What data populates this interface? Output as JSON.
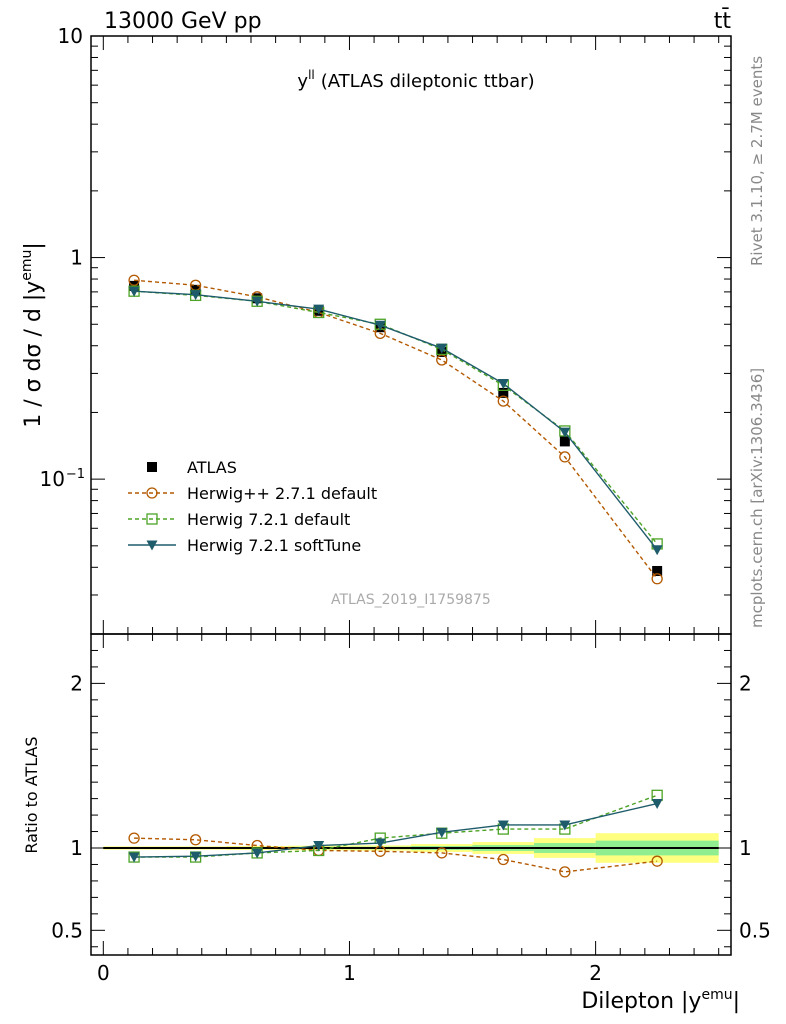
{
  "header": {
    "energy_label": "13000 GeV pp",
    "process_label": "tt̄",
    "side_label_top": "Rivet 3.1.10, ≥ 2.7M events",
    "side_label_bottom": "mcplots.cern.ch [arXiv:1306.3436]",
    "watermark": "ATLAS_2019_I1759875"
  },
  "colors": {
    "atlas": "#000000",
    "herwigpp": "#b35900",
    "herwig721": "#4ca326",
    "softtune": "#1f5c6b",
    "band_inner": "#90ee90",
    "band_outer": "#ffff80"
  },
  "chart_data": [
    {
      "type": "scatter",
      "title": "y^ll (ATLAS dileptonic ttbar)",
      "title_main": "y",
      "title_sup": "ll",
      "title_rest": "(ATLAS dileptonic ttbar)",
      "ylabel": "1 / σ  dσ / d |y^emu|",
      "ylabel_main": "1 / σ  dσ / d |y",
      "ylabel_sup": "emu",
      "ylabel_end": "|",
      "yscale": "log",
      "ylim": [
        0.02,
        10
      ],
      "xlim": [
        -0.05,
        2.55
      ],
      "y_ticks": [
        {
          "value": 10,
          "label": "10"
        },
        {
          "value": 1,
          "label": "1"
        },
        {
          "value": 0.1,
          "label": "10",
          "sup": "−1"
        }
      ],
      "x": [
        0.125,
        0.375,
        0.625,
        0.875,
        1.125,
        1.375,
        1.625,
        1.875,
        2.25
      ],
      "series": [
        {
          "name": "ATLAS",
          "marker": "filled-square",
          "line": "none",
          "values": [
            0.745,
            0.715,
            0.655,
            0.575,
            0.485,
            0.375,
            0.245,
            0.148,
            0.0385
          ]
        },
        {
          "name": "Herwig++ 2.7.1 default",
          "marker": "open-circle",
          "line": "dashed",
          "values": [
            0.79,
            0.75,
            0.665,
            0.565,
            0.455,
            0.345,
            0.225,
            0.126,
            0.0355
          ]
        },
        {
          "name": "Herwig 7.2.1 default",
          "marker": "open-square",
          "line": "dashed",
          "values": [
            0.705,
            0.675,
            0.635,
            0.565,
            0.5,
            0.385,
            0.265,
            0.165,
            0.051
          ]
        },
        {
          "name": "Herwig 7.2.1 softTune",
          "marker": "filled-triangle-down",
          "line": "solid",
          "values": [
            0.705,
            0.68,
            0.635,
            0.585,
            0.495,
            0.39,
            0.27,
            0.163,
            0.048
          ]
        }
      ],
      "legend_position": "lower-left"
    },
    {
      "type": "scatter",
      "ylabel": "Ratio to ATLAS",
      "xlabel": "Dilepton |y^emu|",
      "xlabel_main": "Dilepton |y",
      "xlabel_sup": "emu",
      "xlabel_end": "|",
      "ylim": [
        0.35,
        2.3
      ],
      "xlim": [
        -0.05,
        2.55
      ],
      "y_ticks": [
        {
          "value": 2,
          "label": "2"
        },
        {
          "value": 1,
          "label": "1"
        },
        {
          "value": 0.5,
          "label": "0.5"
        }
      ],
      "x_ticks": [
        {
          "value": 0,
          "label": "0"
        },
        {
          "value": 1,
          "label": "1"
        },
        {
          "value": 2,
          "label": "2"
        }
      ],
      "x": [
        0.125,
        0.375,
        0.625,
        0.875,
        1.125,
        1.375,
        1.625,
        1.875,
        2.25
      ],
      "bins": [
        [
          0,
          0.25
        ],
        [
          0.25,
          0.5
        ],
        [
          0.5,
          0.75
        ],
        [
          0.75,
          1.0
        ],
        [
          1.0,
          1.25
        ],
        [
          1.25,
          1.5
        ],
        [
          1.5,
          1.75
        ],
        [
          1.75,
          2.0
        ],
        [
          2.0,
          2.5
        ]
      ],
      "uncertainty_inner": [
        0.005,
        0.005,
        0.006,
        0.007,
        0.008,
        0.012,
        0.018,
        0.03,
        0.045
      ],
      "uncertainty_outer": [
        0.01,
        0.01,
        0.012,
        0.014,
        0.016,
        0.024,
        0.036,
        0.06,
        0.09
      ],
      "series": [
        {
          "name": "Herwig++ 2.7.1 default",
          "values": [
            1.06,
            1.05,
            1.015,
            0.985,
            0.98,
            0.97,
            0.93,
            0.855,
            0.92
          ]
        },
        {
          "name": "Herwig 7.2.1 default",
          "values": [
            0.945,
            0.945,
            0.97,
            0.985,
            1.06,
            1.09,
            1.115,
            1.115,
            1.32
          ]
        },
        {
          "name": "Herwig 7.2.1 softTune",
          "values": [
            0.945,
            0.95,
            0.97,
            1.015,
            1.03,
            1.095,
            1.14,
            1.14,
            1.27
          ]
        }
      ]
    }
  ]
}
